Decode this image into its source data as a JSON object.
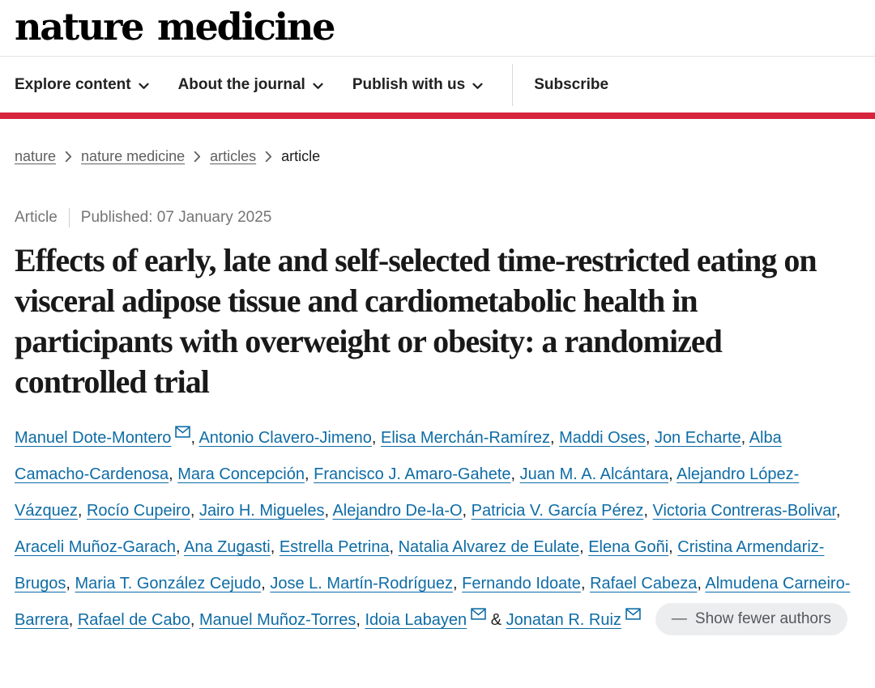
{
  "header": {
    "logo": "nature medicine",
    "nav_items": [
      {
        "label": "Explore content",
        "has_dropdown": true
      },
      {
        "label": "About the journal",
        "has_dropdown": true
      },
      {
        "label": "Publish with us",
        "has_dropdown": true
      }
    ],
    "subscribe_label": "Subscribe",
    "accent_red": "#d6233e"
  },
  "breadcrumb": {
    "items": [
      {
        "label": "nature",
        "link": true
      },
      {
        "label": "nature medicine",
        "link": true
      },
      {
        "label": "articles",
        "link": true
      },
      {
        "label": "article",
        "link": false
      }
    ]
  },
  "meta": {
    "type": "Article",
    "published": "Published: 07 January 2025"
  },
  "article": {
    "title": "Effects of early, late and self-selected time-restricted eating on visceral adipose tissue and cardiometabolic health in participants with overweight or obesity: a randomized controlled trial"
  },
  "authors": {
    "list": [
      {
        "name": "Manuel Dote-Montero",
        "email": true
      },
      {
        "name": "Antonio Clavero-Jimeno",
        "email": false
      },
      {
        "name": "Elisa Merchán-Ramírez",
        "email": false
      },
      {
        "name": "Maddi Oses",
        "email": false
      },
      {
        "name": "Jon Echarte",
        "email": false
      },
      {
        "name": "Alba Camacho-Cardenosa",
        "email": false
      },
      {
        "name": "Mara Concepción",
        "email": false
      },
      {
        "name": "Francisco J. Amaro-Gahete",
        "email": false
      },
      {
        "name": "Juan M. A. Alcántara",
        "email": false
      },
      {
        "name": "Alejandro López-Vázquez",
        "email": false
      },
      {
        "name": "Rocío Cupeiro",
        "email": false
      },
      {
        "name": "Jairo H. Migueles",
        "email": false
      },
      {
        "name": "Alejandro De-la-O",
        "email": false
      },
      {
        "name": "Patricia V. García Pérez",
        "email": false
      },
      {
        "name": "Victoria Contreras-Bolivar",
        "email": false
      },
      {
        "name": "Araceli Muñoz-Garach",
        "email": false
      },
      {
        "name": "Ana Zugasti",
        "email": false
      },
      {
        "name": "Estrella Petrina",
        "email": false
      },
      {
        "name": "Natalia Alvarez de Eulate",
        "email": false
      },
      {
        "name": "Elena Goñi",
        "email": false
      },
      {
        "name": "Cristina Armendariz-Brugos",
        "email": false
      },
      {
        "name": "Maria T. González Cejudo",
        "email": false
      },
      {
        "name": "Jose L. Martín-Rodríguez",
        "email": false
      },
      {
        "name": "Fernando Idoate",
        "email": false
      },
      {
        "name": "Rafael Cabeza",
        "email": false
      },
      {
        "name": "Almudena Carneiro-Barrera",
        "email": false
      },
      {
        "name": "Rafael de Cabo",
        "email": false
      },
      {
        "name": "Manuel Muñoz-Torres",
        "email": false
      },
      {
        "name": "Idoia Labayen",
        "email": true
      },
      {
        "name": "Jonatan R. Ruiz",
        "email": true
      }
    ],
    "comma_separator": ", ",
    "ampersand_separator": " & ",
    "show_fewer": {
      "icon": "—",
      "label": "Show fewer authors"
    }
  },
  "colors": {
    "link_blue": "#0e6ca6",
    "accent_red": "#d6233e"
  }
}
